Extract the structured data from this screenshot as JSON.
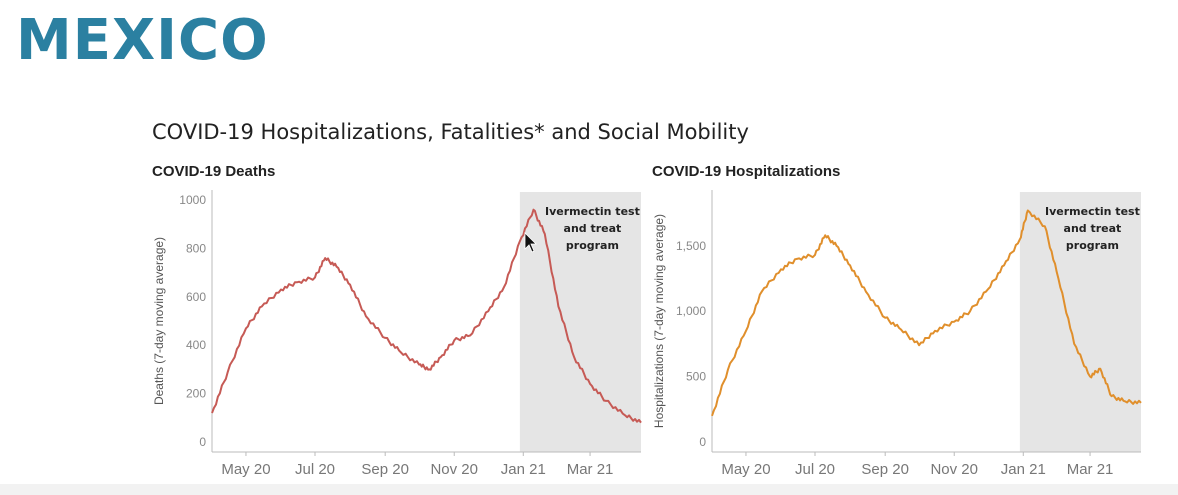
{
  "slide": {
    "title": "MEXICO",
    "heading": "COVID-19 Hospitalizations, Fatalities* and Social Mobility"
  },
  "colors": {
    "title": "#2b80a1",
    "deaths_line": "#c65a55",
    "hosp_line": "#e08f2c",
    "shade": "#e5e5e5"
  },
  "chart_data": [
    {
      "type": "line",
      "title": "COVID-19 Deaths",
      "ylabel": "Deaths (7-day moving average)",
      "xlabel": "",
      "ylim": [
        0,
        1000
      ],
      "yticks": [
        0,
        200,
        400,
        600,
        800,
        1000
      ],
      "ytick_labels": [
        "0",
        "200",
        "400",
        "600",
        "800",
        "1000"
      ],
      "x_ticks": [
        "2020-05-01",
        "2020-07-01",
        "2020-09-01",
        "2020-11-01",
        "2021-01-01",
        "2021-03-01"
      ],
      "x_tick_labels": [
        "May 20",
        "Jul 20",
        "Sep 20",
        "Nov 20",
        "Jan 21",
        "Mar 21"
      ],
      "xlim": [
        "2020-04-01",
        "2021-04-15"
      ],
      "grid": false,
      "annotation": {
        "lines": [
          "Ivermectin test",
          "and treat",
          "program"
        ],
        "start": "2020-12-29",
        "end": "2021-04-15"
      },
      "series": [
        {
          "x": [
            "2020-04-01",
            "2020-04-15",
            "2020-05-01",
            "2020-05-15",
            "2020-06-01",
            "2020-06-15",
            "2020-07-01",
            "2020-07-10",
            "2020-07-20",
            "2020-08-01",
            "2020-08-15",
            "2020-09-01",
            "2020-09-15",
            "2020-10-01",
            "2020-10-10",
            "2020-10-20",
            "2020-11-01",
            "2020-11-15",
            "2020-12-01",
            "2020-12-15",
            "2020-12-29",
            "2021-01-10",
            "2021-01-20",
            "2021-02-01",
            "2021-02-15",
            "2021-03-01",
            "2021-03-15",
            "2021-04-01",
            "2021-04-15"
          ],
          "values": [
            120,
            290,
            470,
            560,
            630,
            660,
            680,
            760,
            725,
            650,
            520,
            430,
            370,
            320,
            300,
            350,
            420,
            440,
            540,
            640,
            830,
            960,
            860,
            560,
            350,
            240,
            170,
            110,
            80
          ]
        }
      ]
    },
    {
      "type": "line",
      "title": "COVID-19 Hospitalizations",
      "ylabel": "Hospitalizations (7-day moving average)",
      "xlabel": "",
      "ylim": [
        0,
        1850
      ],
      "yticks": [
        0,
        500,
        1000,
        1500
      ],
      "ytick_labels": [
        "0",
        "500",
        "1,000",
        "1,500"
      ],
      "x_ticks": [
        "2020-05-01",
        "2020-07-01",
        "2020-09-01",
        "2020-11-01",
        "2021-01-01",
        "2021-03-01"
      ],
      "x_tick_labels": [
        "May 20",
        "Jul 20",
        "Sep 20",
        "Nov 20",
        "Jan 21",
        "Mar 21"
      ],
      "xlim": [
        "2020-04-01",
        "2021-04-15"
      ],
      "grid": false,
      "annotation": {
        "lines": [
          "Ivermectin test",
          "and treat",
          "program"
        ],
        "start": "2020-12-29",
        "end": "2021-04-15"
      },
      "series": [
        {
          "x": [
            "2020-04-01",
            "2020-04-15",
            "2020-05-01",
            "2020-05-15",
            "2020-06-01",
            "2020-06-15",
            "2020-07-01",
            "2020-07-10",
            "2020-07-20",
            "2020-08-01",
            "2020-08-15",
            "2020-09-01",
            "2020-09-15",
            "2020-10-01",
            "2020-10-15",
            "2020-11-01",
            "2020-11-15",
            "2020-12-01",
            "2020-12-15",
            "2020-12-29",
            "2021-01-05",
            "2021-01-20",
            "2021-02-01",
            "2021-02-15",
            "2021-03-01",
            "2021-03-10",
            "2021-03-20",
            "2021-04-01",
            "2021-04-15"
          ],
          "values": [
            200,
            550,
            850,
            1150,
            1320,
            1400,
            1430,
            1580,
            1500,
            1350,
            1150,
            950,
            860,
            740,
            850,
            920,
            1000,
            1170,
            1350,
            1550,
            1770,
            1650,
            1250,
            750,
            500,
            560,
            350,
            310,
            300
          ]
        }
      ]
    }
  ]
}
